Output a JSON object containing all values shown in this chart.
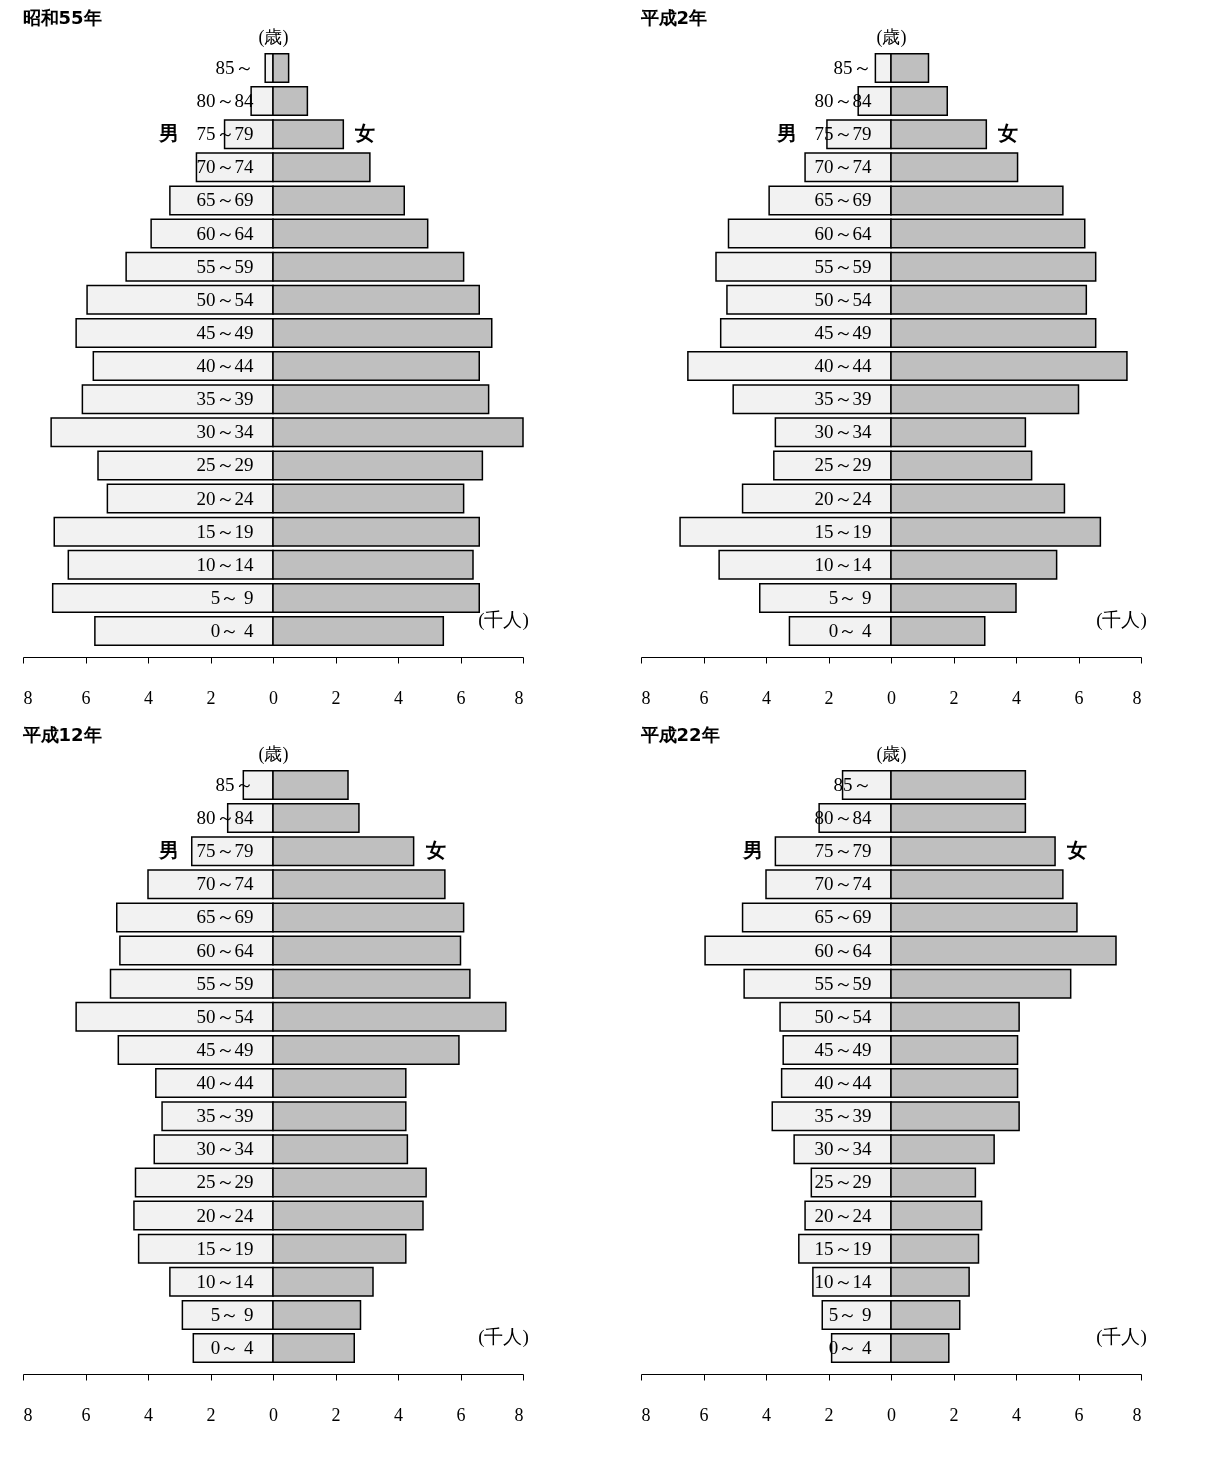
{
  "chart_data": [
    {
      "type": "bar",
      "orientation": "horizontal",
      "stacked": true,
      "title": "昭和55年",
      "xlabel": "(千人)",
      "ylabel": "(歳)",
      "categories": [
        "85～",
        "80～84",
        "75～79",
        "70～74",
        "65～69",
        "60～64",
        "55～59",
        "50～54",
        "45～49",
        "40～44",
        "35～39",
        "30～34",
        "25～29",
        "20～24",
        "15～19",
        "10～14",
        "5～ 9",
        "0～ 4"
      ],
      "series": [
        {
          "name": "男",
          "color": "#f2f2f2",
          "values": [
            -0.25,
            -0.7,
            -1.55,
            -2.45,
            -3.3,
            -3.9,
            -4.7,
            -5.95,
            -6.3,
            -5.75,
            -6.1,
            -7.1,
            -5.6,
            -5.3,
            -7.0,
            -6.55,
            -7.05,
            -5.7
          ]
        },
        {
          "name": "女",
          "color": "#bfbfbf",
          "values": [
            0.5,
            1.1,
            2.25,
            3.1,
            4.2,
            4.95,
            6.1,
            6.6,
            7.0,
            6.6,
            6.9,
            8.0,
            6.7,
            6.1,
            6.6,
            6.4,
            6.6,
            5.45
          ]
        }
      ],
      "xlim": [
        -8,
        8
      ],
      "xticks": [
        {
          "value": -8,
          "label": "8"
        },
        {
          "value": -6,
          "label": "6"
        },
        {
          "value": -4,
          "label": "4"
        },
        {
          "value": -2,
          "label": "2"
        },
        0,
        2,
        4,
        6,
        8
      ]
    },
    {
      "type": "bar",
      "orientation": "horizontal",
      "stacked": true,
      "title": "平成2年",
      "xlabel": "(千人)",
      "ylabel": "(歳)",
      "categories": [
        "85～",
        "80～84",
        "75～79",
        "70～74",
        "65～69",
        "60～64",
        "55～59",
        "50～54",
        "45～49",
        "40～44",
        "35～39",
        "30～34",
        "25～29",
        "20～24",
        "15～19",
        "10～14",
        "5～ 9",
        "0～ 4"
      ],
      "series": [
        {
          "name": "男",
          "color": "#f2f2f2",
          "values": [
            -0.5,
            -1.05,
            -2.05,
            -2.75,
            -3.9,
            -5.2,
            -5.6,
            -5.25,
            -5.45,
            -6.5,
            -5.05,
            -3.7,
            -3.75,
            -4.75,
            -6.75,
            -5.5,
            -4.2,
            -3.25
          ]
        },
        {
          "name": "女",
          "color": "#bfbfbf",
          "values": [
            1.2,
            1.8,
            3.05,
            4.05,
            5.5,
            6.2,
            6.55,
            6.25,
            6.55,
            7.55,
            6.0,
            4.3,
            4.5,
            5.55,
            6.7,
            5.3,
            4.0,
            3.0
          ]
        }
      ],
      "xlim": [
        -8,
        8
      ],
      "xticks": [
        {
          "value": -8,
          "label": "8"
        },
        {
          "value": -6,
          "label": "6"
        },
        {
          "value": -4,
          "label": "4"
        },
        {
          "value": -2,
          "label": "2"
        },
        0,
        2,
        4,
        6,
        8
      ]
    },
    {
      "type": "bar",
      "orientation": "horizontal",
      "stacked": true,
      "title": "平成12年",
      "xlabel": "(千人)",
      "ylabel": "(歳)",
      "categories": [
        "85～",
        "80～84",
        "75～79",
        "70～74",
        "65～69",
        "60～64",
        "55～59",
        "50～54",
        "45～49",
        "40～44",
        "35～39",
        "30～34",
        "25～29",
        "20～24",
        "15～19",
        "10～14",
        "5～ 9",
        "0～ 4"
      ],
      "series": [
        {
          "name": "男",
          "color": "#f2f2f2",
          "values": [
            -0.95,
            -1.45,
            -2.6,
            -4.0,
            -5.0,
            -4.9,
            -5.2,
            -6.3,
            -4.95,
            -3.75,
            -3.55,
            -3.8,
            -4.4,
            -4.45,
            -4.3,
            -3.3,
            -2.9,
            -2.55
          ]
        },
        {
          "name": "女",
          "color": "#bfbfbf",
          "values": [
            2.4,
            2.75,
            4.5,
            5.5,
            6.1,
            6.0,
            6.3,
            7.45,
            5.95,
            4.25,
            4.25,
            4.3,
            4.9,
            4.8,
            4.25,
            3.2,
            2.8,
            2.6
          ]
        }
      ],
      "xlim": [
        -8,
        8
      ],
      "xticks": [
        {
          "value": -8,
          "label": "8"
        },
        {
          "value": -6,
          "label": "6"
        },
        {
          "value": -4,
          "label": "4"
        },
        {
          "value": -2,
          "label": "2"
        },
        0,
        2,
        4,
        6,
        8
      ]
    },
    {
      "type": "bar",
      "orientation": "horizontal",
      "stacked": true,
      "title": "平成22年",
      "xlabel": "(千人)",
      "ylabel": "(歳)",
      "categories": [
        "85～",
        "80～84",
        "75～79",
        "70～74",
        "65～69",
        "60～64",
        "55～59",
        "50～54",
        "45～49",
        "40～44",
        "35～39",
        "30～34",
        "25～29",
        "20～24",
        "15～19",
        "10～14",
        "5～ 9",
        "0～ 4"
      ],
      "series": [
        {
          "name": "男",
          "color": "#f2f2f2",
          "values": [
            -1.55,
            -2.3,
            -3.7,
            -4.0,
            -4.75,
            -5.95,
            -4.7,
            -3.55,
            -3.45,
            -3.5,
            -3.8,
            -3.1,
            -2.55,
            -2.75,
            -2.95,
            -2.5,
            -2.2,
            -1.9
          ]
        },
        {
          "name": "女",
          "color": "#bfbfbf",
          "values": [
            4.3,
            4.3,
            5.25,
            5.5,
            5.95,
            7.2,
            5.75,
            4.1,
            4.05,
            4.05,
            4.1,
            3.3,
            2.7,
            2.9,
            2.8,
            2.5,
            2.2,
            1.85
          ]
        }
      ],
      "xlim": [
        -8,
        8
      ],
      "xticks": [
        {
          "value": -8,
          "label": "8"
        },
        {
          "value": -6,
          "label": "6"
        },
        {
          "value": -4,
          "label": "4"
        },
        {
          "value": -2,
          "label": "2"
        },
        0,
        2,
        4,
        6,
        8
      ]
    }
  ]
}
